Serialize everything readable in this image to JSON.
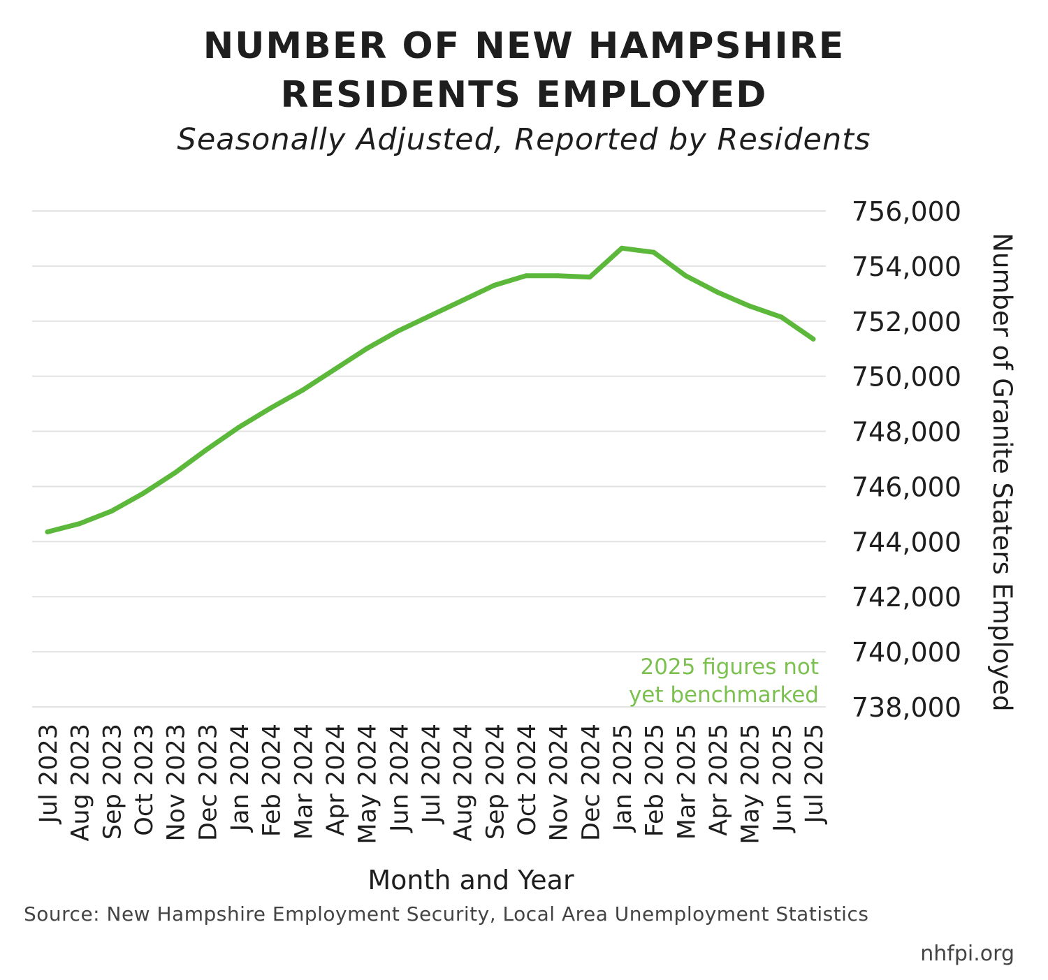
{
  "title_line1": "NUMBER OF NEW HAMPSHIRE",
  "title_line2": "RESIDENTS EMPLOYED",
  "subtitle": "Seasonally Adjusted, Reported by Residents",
  "source": "Source: New Hampshire Employment Security, Local Area Unemployment Statistics",
  "site": "nhfpi.org",
  "colors": {
    "line": "#5cb83a",
    "note": "#7cc04f",
    "grid": "#e2e2e2",
    "text": "#1e1e1e"
  },
  "chart_data": {
    "type": "line",
    "title": "NUMBER OF NEW HAMPSHIRE RESIDENTS EMPLOYED",
    "subtitle": "Seasonally Adjusted, Reported by Residents",
    "xlabel": "Month and Year",
    "ylabel": "Number of Granite Staters Employed",
    "ylim": [
      738000,
      756000
    ],
    "y_ticks": [
      738000,
      740000,
      742000,
      744000,
      746000,
      748000,
      750000,
      752000,
      754000,
      756000
    ],
    "y_tick_labels": [
      "738,000",
      "740,000",
      "742,000",
      "744,000",
      "746,000",
      "748,000",
      "750,000",
      "752,000",
      "754,000",
      "756,000"
    ],
    "y_axis_side": "right",
    "grid": true,
    "categories": [
      "Jul 2023",
      "Aug 2023",
      "Sep 2023",
      "Oct 2023",
      "Nov 2023",
      "Dec 2023",
      "Jan 2024",
      "Feb 2024",
      "Mar 2024",
      "Apr 2024",
      "May 2024",
      "Jun 2024",
      "Jul 2024",
      "Aug 2024",
      "Sep 2024",
      "Oct 2024",
      "Nov 2024",
      "Dec 2024",
      "Jan 2025",
      "Feb 2025",
      "Mar 2025",
      "Apr 2025",
      "May 2025",
      "Jun 2025",
      "Jul 2025"
    ],
    "series": [
      {
        "values": [
          744350,
          744650,
          745100,
          745750,
          746500,
          747350,
          748150,
          748850,
          749500,
          750250,
          751000,
          751650,
          752200,
          752750,
          753300,
          753650,
          753650,
          753600,
          754650,
          754500,
          753650,
          753050,
          752550,
          752150,
          751350
        ]
      }
    ],
    "annotation": [
      "2025 figures not",
      "yet benchmarked"
    ]
  }
}
